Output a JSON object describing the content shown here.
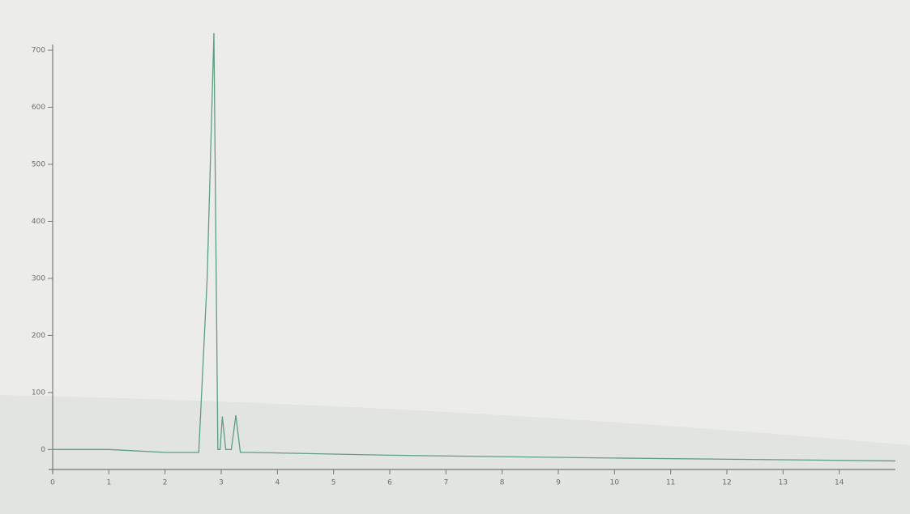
{
  "chart_data": {
    "type": "line",
    "x": [
      0,
      1,
      2,
      2.6,
      2.75,
      2.87,
      2.94,
      2.98,
      3.02,
      3.08,
      3.18,
      3.26,
      3.34,
      3.5,
      6,
      10,
      15
    ],
    "series": [
      {
        "color": "#5e9e80",
        "values": [
          0,
          0,
          -5,
          -5,
          300,
          730,
          0,
          0,
          58,
          0,
          0,
          60,
          -5,
          -5,
          -10,
          -15,
          -20
        ]
      }
    ],
    "xlim": [
      0,
      15
    ],
    "ylim": [
      -35,
      710
    ],
    "xticks": [
      0,
      1,
      2,
      3,
      4,
      5,
      6,
      7,
      8,
      9,
      10,
      11,
      12,
      13,
      14
    ],
    "yticks": [
      0,
      100,
      200,
      300,
      400,
      500,
      600,
      700
    ]
  }
}
